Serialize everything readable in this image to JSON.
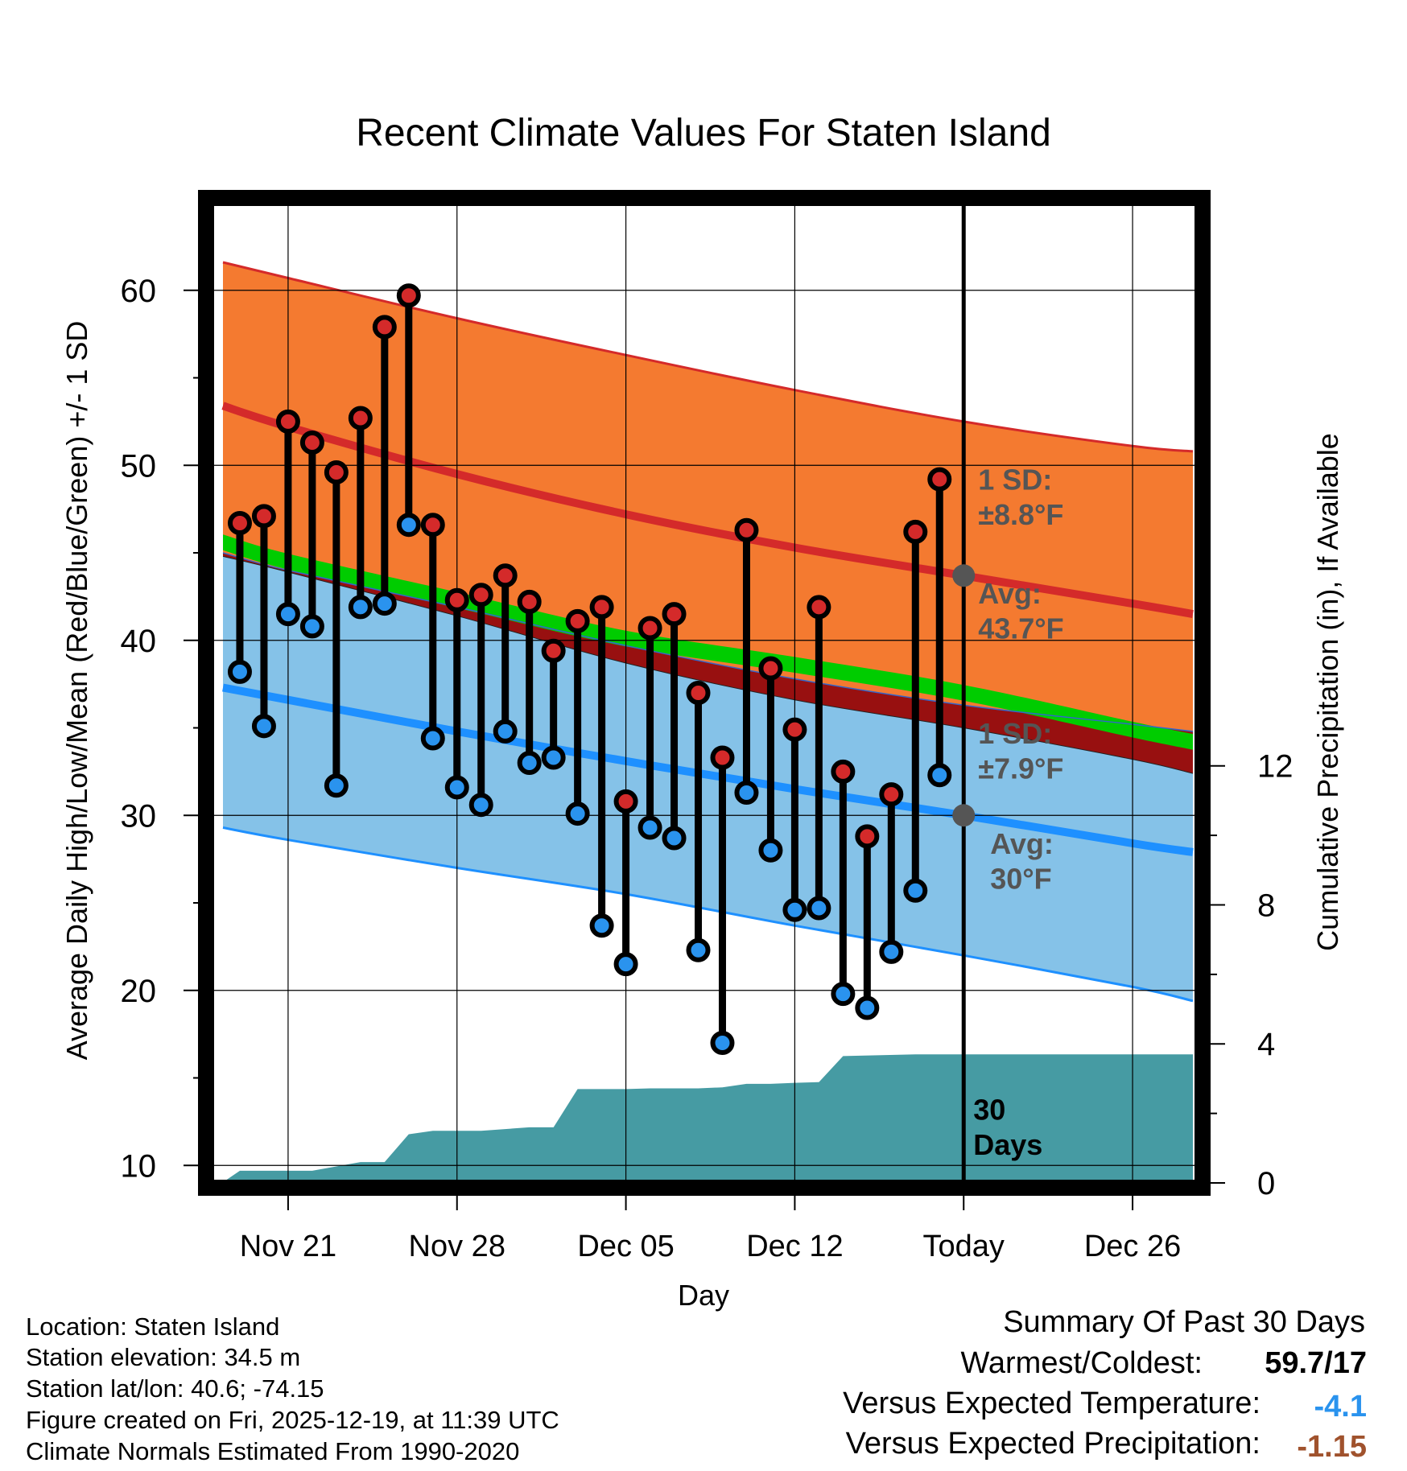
{
  "chart_data": {
    "type": "line",
    "title": "Recent Climate Values For Staten Island",
    "xlabel": "Day",
    "ylabel": "Average Daily High/Low/Mean (Red/Blue/Green) +/- 1 SD",
    "y2label": "Cumulative Precipitation (in), If Available",
    "xlim": [
      -3.2,
      37.7
    ],
    "ylim": [
      9,
      65
    ],
    "y2lim": [
      0,
      28.2
    ],
    "x_ticks": [
      {
        "x": 0,
        "label": "Nov 21"
      },
      {
        "x": 7,
        "label": "Nov 28"
      },
      {
        "x": 14,
        "label": "Dec 05"
      },
      {
        "x": 21,
        "label": "Dec 12"
      },
      {
        "x": 28,
        "label": "Today"
      },
      {
        "x": 35,
        "label": "Dec 26"
      }
    ],
    "y_ticks": [
      10,
      20,
      30,
      40,
      50,
      60
    ],
    "y2_ticks": [
      0,
      4,
      8,
      12
    ],
    "today_x": 28,
    "normals": {
      "x": [
        -2.7,
        0,
        7,
        14,
        21,
        28,
        35,
        37.5
      ],
      "high_upper": [
        61.6,
        60.7,
        58.4,
        56.3,
        54.3,
        52.5,
        51.1,
        50.8
      ],
      "high_mean": [
        53.4,
        52.2,
        49.5,
        47.2,
        45.3,
        43.7,
        42.1,
        41.5
      ],
      "high_lower": [
        45.0,
        44.0,
        41.9,
        39.7,
        37.8,
        36.3,
        35.2,
        34.8
      ],
      "mean": [
        45.6,
        44.5,
        42.3,
        40.1,
        38.6,
        37.0,
        34.9,
        34.2
      ],
      "low_upper": [
        44.8,
        43.9,
        41.4,
        38.7,
        36.6,
        35.0,
        33.2,
        32.4
      ],
      "low_mean": [
        37.3,
        36.6,
        34.8,
        33.1,
        31.5,
        30.0,
        28.4,
        27.9
      ],
      "low_lower": [
        29.3,
        28.6,
        27.0,
        25.5,
        23.7,
        22.0,
        20.2,
        19.4
      ]
    },
    "series": [
      {
        "name": "Daily High",
        "color": "#d42a2a",
        "x": [
          -2,
          -1,
          0,
          1,
          2,
          3,
          4,
          5,
          6,
          7,
          8,
          9,
          10,
          11,
          12,
          13,
          14,
          15,
          16,
          17,
          18,
          19,
          20,
          21,
          22,
          23,
          24,
          25,
          26,
          27
        ],
        "values": [
          46.7,
          47.1,
          52.5,
          51.3,
          49.6,
          52.7,
          57.9,
          59.7,
          46.6,
          42.3,
          42.6,
          43.7,
          42.2,
          39.4,
          41.1,
          41.9,
          30.8,
          40.7,
          41.5,
          37.0,
          33.3,
          46.3,
          38.4,
          34.9,
          41.9,
          32.5,
          28.8,
          31.2,
          46.2,
          49.2
        ]
      },
      {
        "name": "Daily Low",
        "color": "#2a93ee",
        "x": [
          -2,
          -1,
          0,
          1,
          2,
          3,
          4,
          5,
          6,
          7,
          8,
          9,
          10,
          11,
          12,
          13,
          14,
          15,
          16,
          17,
          18,
          19,
          20,
          21,
          22,
          23,
          24,
          25,
          26,
          27
        ],
        "values": [
          38.2,
          35.1,
          41.5,
          40.8,
          31.7,
          41.9,
          42.1,
          46.6,
          34.4,
          31.6,
          30.6,
          34.8,
          33.0,
          33.3,
          30.1,
          23.7,
          21.5,
          29.3,
          28.7,
          22.3,
          17.0,
          31.3,
          28.0,
          24.6,
          24.7,
          19.8,
          19.0,
          22.2,
          25.7,
          32.3
        ]
      },
      {
        "name": "Cumulative Precipitation",
        "color": "#469ba3",
        "x": [
          -2.7,
          -2,
          1,
          3,
          4,
          5,
          6,
          8,
          10,
          11,
          12,
          14,
          15,
          17,
          18,
          19,
          20,
          21,
          22,
          23,
          26,
          37.5
        ],
        "values": [
          0.02,
          0.35,
          0.35,
          0.6,
          0.6,
          1.4,
          1.5,
          1.5,
          1.6,
          1.6,
          2.7,
          2.7,
          2.72,
          2.72,
          2.75,
          2.85,
          2.85,
          2.88,
          2.9,
          3.65,
          3.7,
          3.7
        ]
      }
    ],
    "annotations": [
      {
        "text_line1": "1 SD:",
        "text_line2": "±8.8°F"
      },
      {
        "text_line1": "Avg:",
        "text_line2": "43.7°F"
      },
      {
        "text_line1": "1 SD:",
        "text_line2": "±7.9°F"
      },
      {
        "text_line1": "Avg:",
        "text_line2": "30°F"
      },
      {
        "text_line1": "30",
        "text_line2": "Days"
      }
    ]
  },
  "station_info": {
    "location": "Location: Staten Island",
    "elevation": "Station elevation: 34.5 m",
    "latlon": "Station lat/lon: 40.6; -74.15",
    "created": "Figure created on Fri, 2025-12-19, at 11:39 UTC",
    "normals": "Climate Normals Estimated From 1990-2020"
  },
  "summary": {
    "title": "Summary Of Past 30 Days",
    "warm_cold_label": "Warmest/Coldest:",
    "warm_cold_value": "59.7/17",
    "temp_label": "Versus Expected Temperature:",
    "temp_value": "-4.1",
    "temp_color": "#2a93ee",
    "precip_label": "Versus Expected Precipitation:",
    "precip_value": "-1.15",
    "precip_color": "#a0522d"
  },
  "colors": {
    "high_band": "#f47a30",
    "high_line": "#d42a2a",
    "low_band": "#85c2e8",
    "low_line": "#1e90ff",
    "mean_band": "#00cc00",
    "overlap_band": "#981010",
    "precip": "#469ba3",
    "marker_gray": "#555555",
    "annot_text": "#555555"
  }
}
